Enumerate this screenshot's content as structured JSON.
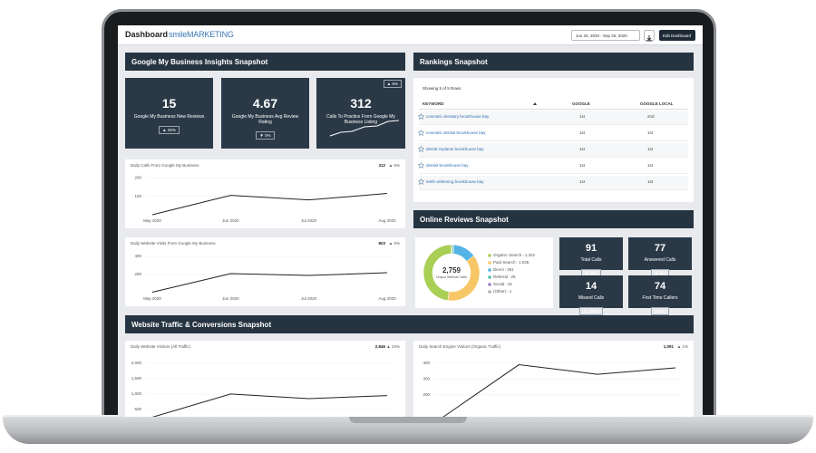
{
  "header": {
    "title": "Dashboard",
    "logo": "smileMARKETING",
    "date_range": "Jun 20, 2020 - Sep 26, 2020",
    "edit_button": "Edit Dashboard"
  },
  "sections": {
    "gmb": "Google My Business Insights Snapshot",
    "rankings": "Rankings Snapshot",
    "reviews": "Online Reviews Snapshot",
    "traffic": "Website Traffic & Conversions Snapshot"
  },
  "gmb_kpis": [
    {
      "value": "15",
      "label": "Google My Business New Reviews",
      "change": "▲ 25%"
    },
    {
      "value": "4.67",
      "label": "Google My Business Avg Review Rating",
      "change": "▼ 0%"
    },
    {
      "value": "312",
      "label": "Calls To Practice From Google My Business Listing",
      "change": "▲ 5%"
    }
  ],
  "rankings": {
    "note": "Showing 5 of 5 Rows",
    "columns": [
      "KEYWORD",
      "GOOGLE",
      "GOOGLE LOCAL"
    ],
    "rows": [
      [
        "cosmetic dentistry brookhouse bay",
        "1st",
        "2nd"
      ],
      [
        "cosmetic dentist brookhouse bay",
        "1st",
        "1st"
      ],
      [
        "dental implants brookhouse bay",
        "1st",
        "1st"
      ],
      [
        "dentist brookhouse bay",
        "1st",
        "1st"
      ],
      [
        "teeth whitening brookhouse bay",
        "1st",
        "1st"
      ]
    ]
  },
  "call_kpis": [
    {
      "value": "91",
      "label": "Total Calls",
      "change": "▲ 25%"
    },
    {
      "value": "77",
      "label": "Answered Calls",
      "change": "▲ 0%"
    },
    {
      "value": "14",
      "label": "Missed Calls",
      "change": "▲ 100%"
    },
    {
      "value": "74",
      "label": "First Time Callers",
      "change": "▲ 0%"
    }
  ],
  "chart_data": [
    {
      "type": "line",
      "title": "Daily Calls From Google My Business",
      "total": "312",
      "change": "▲ 5%",
      "categories": [
        "May 2020",
        "Jun 2020",
        "Jul 2020",
        "Aug 2020"
      ],
      "values": [
        0,
        105,
        80,
        115
      ],
      "ylim": [
        0,
        250
      ],
      "yticks": [
        100,
        200
      ],
      "color": "#222222"
    },
    {
      "type": "line",
      "title": "Daily Website Visits From Google My Business",
      "total": "803",
      "change": "▲ 0%",
      "categories": [
        "May 2020",
        "Jun 2020",
        "Jul 2020",
        "Aug 2020"
      ],
      "values": [
        5,
        210,
        190,
        220
      ],
      "ylim": [
        0,
        450
      ],
      "yticks": [
        200,
        400
      ],
      "color": "#222222"
    },
    {
      "type": "pie",
      "total": "2,759",
      "total_label": "Unique Website Visits",
      "categories": [
        "Organic Search",
        "Paid Search",
        "Direct",
        "Referral",
        "Social",
        "(Other)"
      ],
      "values": [
        1322,
        1035,
        361,
        25,
        15,
        1
      ],
      "value_labels": [
        "1,322",
        "1,035",
        "361",
        "25",
        "15",
        "1"
      ],
      "colors": [
        "#a9cf54",
        "#f7c666",
        "#55b3e6",
        "#4fc3b0",
        "#9b7fc9",
        "#b0b0b0"
      ]
    },
    {
      "type": "line",
      "title": "Daily Website Visitors (All Traffic)",
      "total": "2,846",
      "change": "▲ 24%",
      "categories": [
        "May 2020",
        "Jun 2020",
        "Jul 2020",
        "Aug 2020"
      ],
      "values": [
        250,
        1000,
        850,
        950
      ],
      "ylim": [
        0,
        2200
      ],
      "yticks": [
        {
          "value": 500,
          "label": "500"
        },
        {
          "value": 1000,
          "label": "1,000"
        },
        {
          "value": 1500,
          "label": "1,500"
        },
        {
          "value": 2000,
          "label": "2,000"
        }
      ],
      "color": "#222222"
    },
    {
      "type": "line",
      "title": "Daily Search Engine Visitors (Organic Traffic)",
      "total": "1,091",
      "change": "▲ 1%",
      "categories": [
        "May 2020",
        "Jun 2020",
        "Jul 2020",
        "Aug 2020"
      ],
      "values": [
        50,
        390,
        330,
        370
      ],
      "ylim": [
        0,
        450
      ],
      "yticks": [
        200,
        300,
        400
      ],
      "color": "#222222"
    }
  ]
}
